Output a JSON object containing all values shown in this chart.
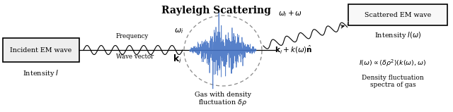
{
  "title": "Rayleigh Scattering",
  "bg_color": "#ffffff",
  "fig_width": 6.4,
  "fig_height": 1.59,
  "incident_box_text": "Incident EM wave",
  "incident_intensity_text": "Intensity $\\mathit{I}$",
  "scattered_box_text": "Scattered EM wave",
  "scattered_intensity_text": "Intensity $\\mathit{I}(\\omega)$",
  "frequency_text": "Frequency",
  "wave_vector_text": "Wave vector",
  "omega_i_text": "$\\omega_i$",
  "k_i_text": "$\\mathbf{k}_i$",
  "omega_out_text": "$\\omega_i + \\omega$",
  "k_out_text": "$\\mathbf{k}_i + k(\\omega)\\hat{\\mathbf{n}}$",
  "gas_text1": "Gas with density",
  "gas_text2": "fluctuation $\\delta\\rho$",
  "formula_text": "$I(\\omega) \\propto \\langle \\delta\\rho^2 \\rangle \\left(k(\\omega), \\omega\\right)$",
  "density_text1": "Density fluctuation",
  "density_text2": "spectra of gas",
  "line_color": "#000000",
  "wave_color": "#4472c4",
  "box_edge_color": "#000000",
  "text_color": "#000000",
  "arrow_color": "#000000",
  "dashed_line_color": "#888888"
}
